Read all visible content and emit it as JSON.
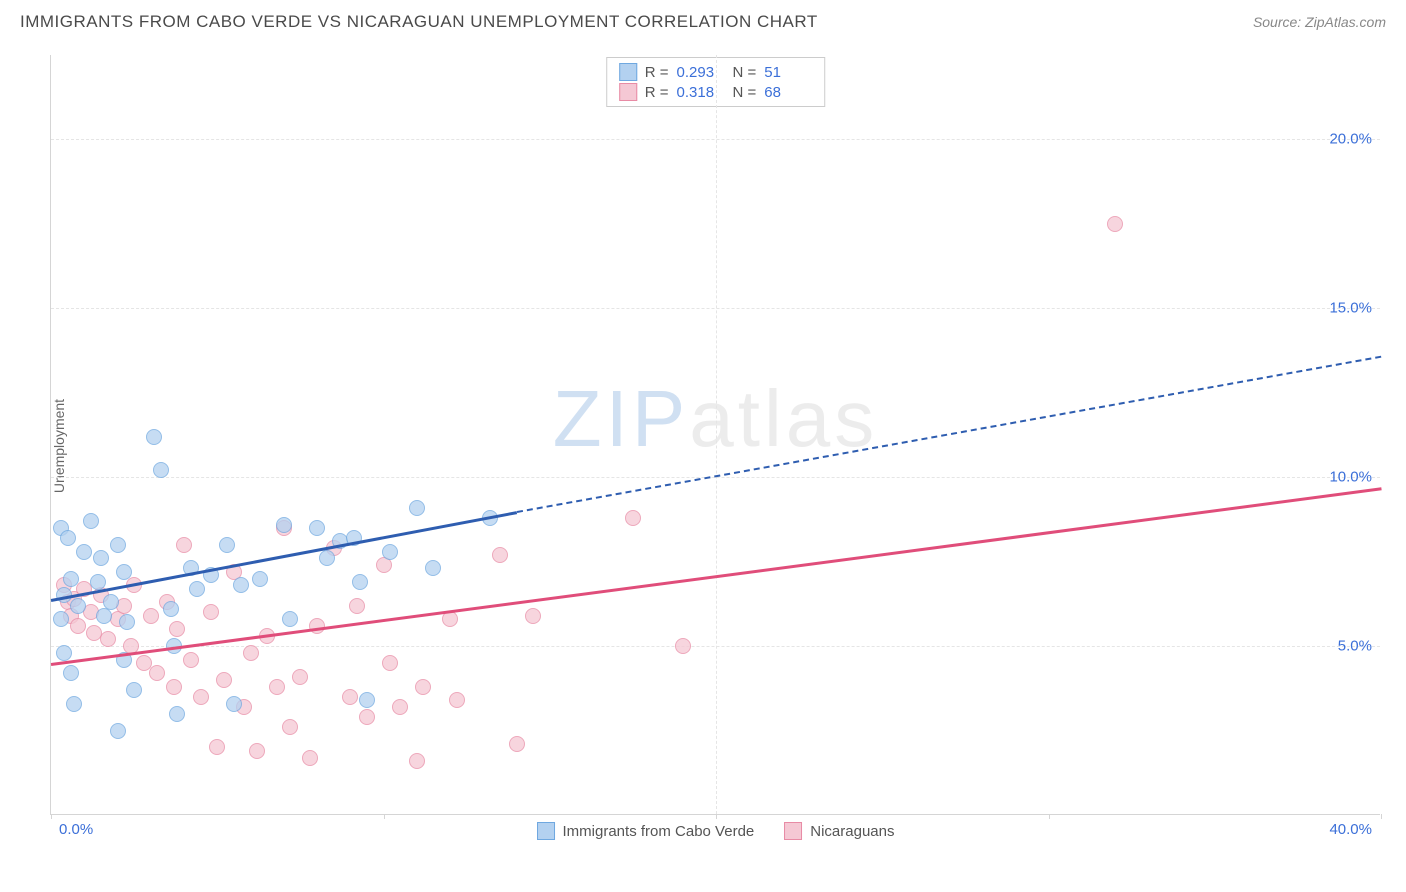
{
  "header": {
    "title": "IMMIGRANTS FROM CABO VERDE VS NICARAGUAN UNEMPLOYMENT CORRELATION CHART",
    "source": "Source: ZipAtlas.com"
  },
  "chart": {
    "type": "scatter",
    "ylabel": "Unemployment",
    "watermark_zip": "ZIP",
    "watermark_atlas": "atlas",
    "background_color": "#ffffff",
    "grid_color": "#e5e5e5",
    "axis_color": "#d5d5d5",
    "tick_label_color": "#3b6fd8",
    "xlim": [
      0,
      40
    ],
    "ylim": [
      0,
      22.5
    ],
    "yticks": [
      5,
      10,
      15,
      20
    ],
    "ytick_labels": [
      "5.0%",
      "10.0%",
      "15.0%",
      "20.0%"
    ],
    "xticks": [
      0,
      20,
      40
    ],
    "xtick_labels": [
      "0.0%",
      "",
      "40.0%"
    ],
    "xtick_marks": [
      0,
      10,
      20,
      30,
      40
    ],
    "marker_radius": 8,
    "marker_opacity": 0.75
  },
  "series": {
    "a": {
      "name": "Immigrants from Cabo Verde",
      "fill": "#b3d1f0",
      "stroke": "#6fa8e0",
      "line_color": "#2e5db0",
      "R": "0.293",
      "N": "51",
      "points": [
        [
          0.3,
          8.5
        ],
        [
          0.5,
          8.2
        ],
        [
          0.6,
          7.0
        ],
        [
          0.4,
          6.5
        ],
        [
          0.8,
          6.2
        ],
        [
          0.3,
          5.8
        ],
        [
          0.4,
          4.8
        ],
        [
          0.6,
          4.2
        ],
        [
          0.7,
          3.3
        ],
        [
          1.0,
          7.8
        ],
        [
          1.2,
          8.7
        ],
        [
          1.4,
          6.9
        ],
        [
          1.5,
          7.6
        ],
        [
          1.6,
          5.9
        ],
        [
          1.8,
          6.3
        ],
        [
          2.0,
          8.0
        ],
        [
          2.2,
          7.2
        ],
        [
          2.3,
          5.7
        ],
        [
          2.2,
          4.6
        ],
        [
          2.5,
          3.7
        ],
        [
          2.0,
          2.5
        ],
        [
          3.1,
          11.2
        ],
        [
          3.3,
          10.2
        ],
        [
          3.6,
          6.1
        ],
        [
          3.7,
          5.0
        ],
        [
          3.8,
          3.0
        ],
        [
          4.2,
          7.3
        ],
        [
          4.4,
          6.7
        ],
        [
          4.8,
          7.1
        ],
        [
          5.3,
          8.0
        ],
        [
          5.7,
          6.8
        ],
        [
          5.5,
          3.3
        ],
        [
          6.3,
          7.0
        ],
        [
          7.0,
          8.6
        ],
        [
          7.2,
          5.8
        ],
        [
          8.0,
          8.5
        ],
        [
          8.3,
          7.6
        ],
        [
          8.7,
          8.1
        ],
        [
          9.1,
          8.2
        ],
        [
          9.3,
          6.9
        ],
        [
          9.5,
          3.4
        ],
        [
          10.2,
          7.8
        ],
        [
          11.0,
          9.1
        ],
        [
          11.5,
          7.3
        ],
        [
          13.2,
          8.8
        ]
      ],
      "trend": {
        "x1": 0,
        "y1": 6.4,
        "x2": 14,
        "y2": 9.0,
        "x3": 40,
        "y3": 13.6
      }
    },
    "b": {
      "name": "Nicaraguans",
      "fill": "#f5c8d4",
      "stroke": "#e88ba5",
      "line_color": "#e04d7a",
      "R": "0.318",
      "N": "68",
      "points": [
        [
          0.4,
          6.8
        ],
        [
          0.5,
          6.3
        ],
        [
          0.6,
          5.9
        ],
        [
          0.7,
          6.4
        ],
        [
          0.8,
          5.6
        ],
        [
          1.0,
          6.7
        ],
        [
          1.2,
          6.0
        ],
        [
          1.3,
          5.4
        ],
        [
          1.5,
          6.5
        ],
        [
          1.7,
          5.2
        ],
        [
          2.0,
          5.8
        ],
        [
          2.2,
          6.2
        ],
        [
          2.4,
          5.0
        ],
        [
          2.5,
          6.8
        ],
        [
          2.8,
          4.5
        ],
        [
          3.0,
          5.9
        ],
        [
          3.2,
          4.2
        ],
        [
          3.5,
          6.3
        ],
        [
          3.7,
          3.8
        ],
        [
          3.8,
          5.5
        ],
        [
          4.0,
          8.0
        ],
        [
          4.2,
          4.6
        ],
        [
          4.5,
          3.5
        ],
        [
          4.8,
          6.0
        ],
        [
          5.0,
          2.0
        ],
        [
          5.2,
          4.0
        ],
        [
          5.5,
          7.2
        ],
        [
          5.8,
          3.2
        ],
        [
          6.0,
          4.8
        ],
        [
          6.2,
          1.9
        ],
        [
          6.5,
          5.3
        ],
        [
          6.8,
          3.8
        ],
        [
          7.0,
          8.5
        ],
        [
          7.2,
          2.6
        ],
        [
          7.5,
          4.1
        ],
        [
          7.8,
          1.7
        ],
        [
          8.0,
          5.6
        ],
        [
          8.5,
          7.9
        ],
        [
          9.0,
          3.5
        ],
        [
          9.2,
          6.2
        ],
        [
          9.5,
          2.9
        ],
        [
          10.0,
          7.4
        ],
        [
          10.2,
          4.5
        ],
        [
          10.5,
          3.2
        ],
        [
          11.0,
          1.6
        ],
        [
          11.2,
          3.8
        ],
        [
          12.0,
          5.8
        ],
        [
          12.2,
          3.4
        ],
        [
          13.5,
          7.7
        ],
        [
          14.0,
          2.1
        ],
        [
          14.5,
          5.9
        ],
        [
          17.5,
          8.8
        ],
        [
          19.0,
          5.0
        ],
        [
          32.0,
          17.5
        ]
      ],
      "trend": {
        "x1": 0,
        "y1": 4.5,
        "x2": 40,
        "y2": 9.7
      }
    }
  },
  "legend_top": {
    "r_label": "R =",
    "n_label": "N ="
  },
  "legend_bottom": {
    "a": "Immigrants from Cabo Verde",
    "b": "Nicaraguans"
  }
}
